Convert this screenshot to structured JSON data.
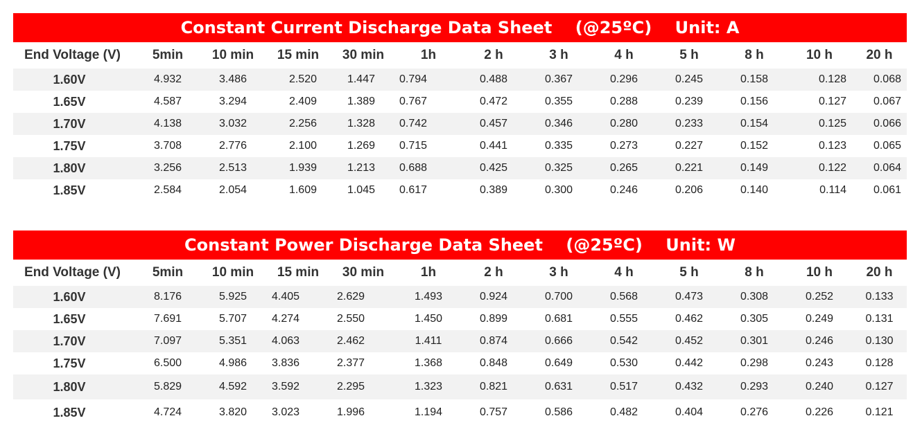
{
  "current_sheet": {
    "title": "Constant Current Discharge Data Sheet    (@25ºC)    Unit: A",
    "headers": [
      "End Voltage  (V)",
      "5min",
      "10 min",
      "15 min",
      "30 min",
      "1h",
      "2 h",
      "3 h",
      "4 h",
      "5 h",
      "8 h",
      "10 h",
      "20 h"
    ],
    "rows": [
      {
        "voltage": "1.60V",
        "values": [
          "4.932",
          "3.486",
          "2.520",
          "1.447",
          "0.794",
          "0.488",
          "0.367",
          "0.296",
          "0.245",
          "0.158",
          "0.128",
          "0.068"
        ]
      },
      {
        "voltage": "1.65V",
        "values": [
          "4.587",
          "3.294",
          "2.409",
          "1.389",
          "0.767",
          "0.472",
          "0.355",
          "0.288",
          "0.239",
          "0.156",
          "0.127",
          "0.067"
        ]
      },
      {
        "voltage": "1.70V",
        "values": [
          "4.138",
          "3.032",
          "2.256",
          "1.328",
          "0.742",
          "0.457",
          "0.346",
          "0.280",
          "0.233",
          "0.154",
          "0.125",
          "0.066"
        ]
      },
      {
        "voltage": "1.75V",
        "values": [
          "3.708",
          "2.776",
          "2.100",
          "1.269",
          "0.715",
          "0.441",
          "0.335",
          "0.273",
          "0.227",
          "0.152",
          "0.123",
          "0.065"
        ]
      },
      {
        "voltage": "1.80V",
        "values": [
          "3.256",
          "2.513",
          "1.939",
          "1.213",
          "0.688",
          "0.425",
          "0.325",
          "0.265",
          "0.221",
          "0.149",
          "0.122",
          "0.064"
        ]
      },
      {
        "voltage": "1.85V",
        "values": [
          "2.584",
          "2.054",
          "1.609",
          "1.045",
          "0.617",
          "0.389",
          "0.300",
          "0.246",
          "0.206",
          "0.140",
          "0.114",
          "0.061"
        ]
      }
    ]
  },
  "power_sheet": {
    "title": "Constant Power Discharge Data Sheet    (@25ºC)    Unit: W",
    "headers": [
      "End Voltage  (V)",
      "5min",
      "10 min",
      "15 min",
      "30 min",
      "1h",
      "2 h",
      "3 h",
      "4 h",
      "5 h",
      "8 h",
      "10 h",
      "20 h"
    ],
    "rows": [
      {
        "voltage": "1.60V",
        "values": [
          "8.176",
          "5.925",
          "4.405",
          "2.629",
          "1.493",
          "0.924",
          "0.700",
          "0.568",
          "0.473",
          "0.308",
          "0.252",
          "0.133"
        ]
      },
      {
        "voltage": "1.65V",
        "values": [
          "7.691",
          "5.707",
          "4.274",
          "2.550",
          "1.450",
          "0.899",
          "0.681",
          "0.555",
          "0.462",
          "0.305",
          "0.249",
          "0.131"
        ]
      },
      {
        "voltage": "1.70V",
        "values": [
          "7.097",
          "5.351",
          "4.063",
          "2.462",
          "1.411",
          "0.874",
          "0.666",
          "0.542",
          "0.452",
          "0.301",
          "0.246",
          "0.130"
        ]
      },
      {
        "voltage": "1.75V",
        "values": [
          "6.500",
          "4.986",
          "3.836",
          "2.377",
          "1.368",
          "0.848",
          "0.649",
          "0.530",
          "0.442",
          "0.298",
          "0.243",
          "0.128"
        ]
      },
      {
        "voltage": "1.80V",
        "values": [
          "5.829",
          "4.592",
          "3.592",
          "2.295",
          "1.323",
          "0.821",
          "0.631",
          "0.517",
          "0.432",
          "0.293",
          "0.240",
          "0.127"
        ]
      },
      {
        "voltage": "1.85V",
        "values": [
          "4.724",
          "3.820",
          "3.023",
          "1.996",
          "1.194",
          "0.757",
          "0.586",
          "0.482",
          "0.404",
          "0.276",
          "0.226",
          "0.121"
        ]
      }
    ]
  }
}
